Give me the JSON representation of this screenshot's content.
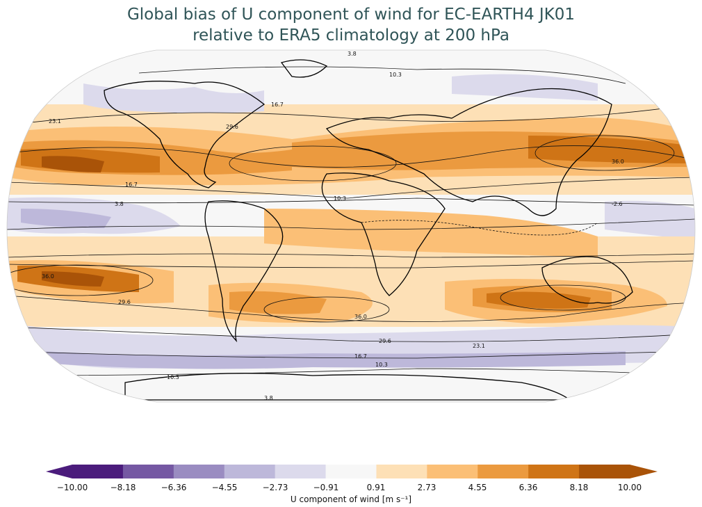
{
  "title": {
    "line1": "Global bias of U component of wind for EC-EARTH4 JK01",
    "line2": "relative to ERA5 climatology at 200 hPa"
  },
  "colorbar": {
    "label": "U component of wind [m s⁻¹]",
    "ticks": [
      "−10.00",
      "−8.18",
      "−6.36",
      "−4.55",
      "−2.73",
      "−0.91",
      "0.91",
      "2.73",
      "4.55",
      "6.36",
      "8.18",
      "10.00"
    ],
    "colors": [
      "#4b1c7c",
      "#7558a3",
      "#9a8cc1",
      "#bdb8da",
      "#dcdaec",
      "#f7f7f7",
      "#fde0b6",
      "#fbbf76",
      "#eb9a3f",
      "#cf7416",
      "#a95308"
    ],
    "extend": "both"
  },
  "contour_labels": [
    "3.8",
    "10.3",
    "16.7",
    "23.1",
    "29.6",
    "36.0",
    "-2.6"
  ],
  "projection": "Robinson"
}
